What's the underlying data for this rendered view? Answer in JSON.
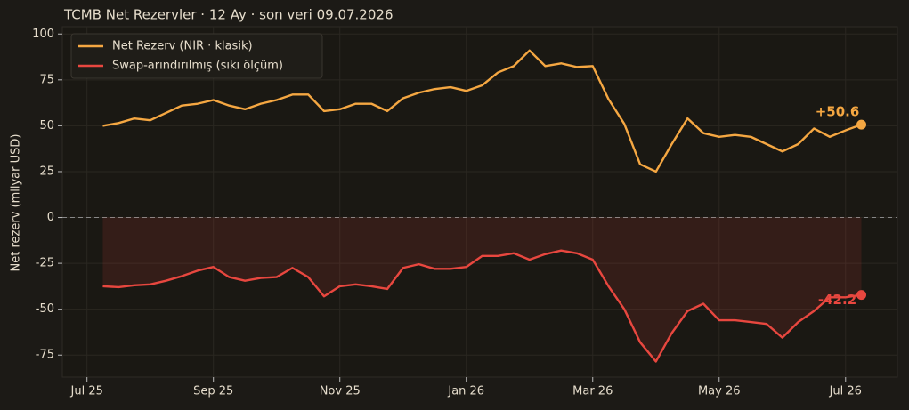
{
  "chart_data": {
    "type": "line",
    "title": "TCMB Net Rezervler · 12 Ay · son veri 09.07.2026",
    "y_label": "Net rezerv (milyar USD)",
    "x": [
      0.25,
      0.5,
      0.75,
      1,
      1.25,
      1.5,
      1.75,
      2,
      2.25,
      2.5,
      2.75,
      3,
      3.25,
      3.5,
      3.75,
      4,
      4.25,
      4.5,
      4.75,
      5,
      5.25,
      5.5,
      5.75,
      6,
      6.25,
      6.5,
      6.75,
      7,
      7.25,
      7.5,
      7.75,
      8,
      8.25,
      8.5,
      8.75,
      9,
      9.25,
      9.5,
      9.75,
      10,
      10.25,
      10.5,
      10.75,
      11,
      11.25,
      11.5,
      11.75,
      12,
      12.25
    ],
    "series": [
      {
        "name": "Net Rezerv (NIR · klasik)",
        "color": "#f5a742",
        "end_label": "+50.6",
        "values": [
          50,
          51.5,
          54,
          53,
          57,
          61,
          62,
          64,
          61,
          59,
          62,
          64,
          67,
          67,
          58,
          59,
          62,
          62,
          58,
          65,
          68,
          70,
          71,
          69,
          72,
          79,
          82.5,
          91,
          82.5,
          84,
          82,
          82.5,
          64.5,
          51,
          29,
          25,
          40,
          54,
          46,
          44,
          45,
          44,
          40,
          36,
          40,
          48.5,
          44,
          47.5,
          50.6
        ]
      },
      {
        "name": "Swap-arındırılmış (sıkı ölçüm)",
        "color": "#e8473f",
        "end_label": "-42.2",
        "fill": true,
        "values": [
          -37.5,
          -38,
          -37,
          -36.5,
          -34.5,
          -32,
          -29,
          -27,
          -32.5,
          -34.5,
          -33,
          -32.5,
          -27.5,
          -32.5,
          -43,
          -37.5,
          -36.5,
          -37.5,
          -39,
          -27.5,
          -25.5,
          -28,
          -28,
          -27,
          -21,
          -21,
          -19.5,
          -23,
          -20,
          -18,
          -19.5,
          -23,
          -37.5,
          -50,
          -68,
          -78.5,
          -63,
          -51,
          -47,
          -56,
          -56,
          -57,
          -58,
          -65.5,
          -57,
          -51,
          -43.5,
          -43.5,
          -42.2
        ]
      }
    ],
    "xlim": [
      -0.39,
      12.82
    ],
    "xticks": [
      {
        "value": 0,
        "label": "Jul 25"
      },
      {
        "value": 2,
        "label": "Sep 25"
      },
      {
        "value": 4,
        "label": "Nov 25"
      },
      {
        "value": 6,
        "label": "Jan 26"
      },
      {
        "value": 8,
        "label": "Mar 26"
      },
      {
        "value": 10,
        "label": "May 26"
      },
      {
        "value": 12,
        "label": "Jul 26"
      }
    ],
    "ylim": [
      -87,
      104
    ],
    "yticks": [
      -75,
      -50,
      -25,
      0,
      25,
      50,
      75,
      100
    ],
    "grid": true,
    "zero_line": true,
    "legend": "upper left"
  }
}
